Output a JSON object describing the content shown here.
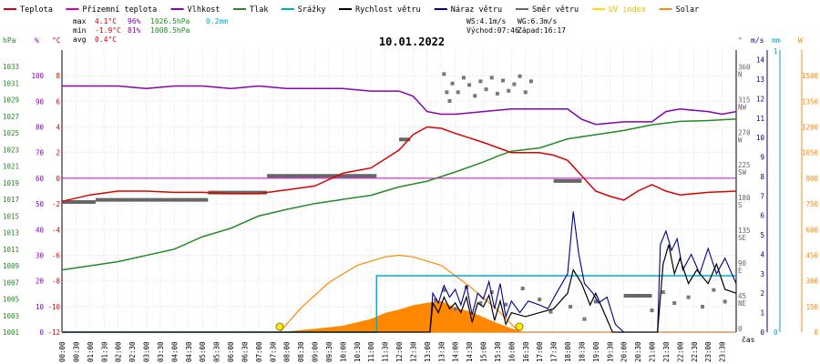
{
  "chart_data": {
    "type": "line",
    "title": "10.01.2022",
    "legend": [
      {
        "key": "teplota",
        "label": "Teplota",
        "color": "#dd0000"
      },
      {
        "key": "prizemni",
        "label": "Přízemní teplota",
        "color": "#cc00cc"
      },
      {
        "key": "vlhkost",
        "label": "Vlhkost",
        "color": "#8a00b4"
      },
      {
        "key": "tlak",
        "label": "Tlak",
        "color": "#228b22"
      },
      {
        "key": "srazky",
        "label": "Srážky",
        "color": "#00aacc"
      },
      {
        "key": "rychlost",
        "label": "Rychlost větru",
        "color": "#000000"
      },
      {
        "key": "naraz",
        "label": "Náraz větru",
        "color": "#000088"
      },
      {
        "key": "smer",
        "label": "Směr větru",
        "color": "#666666"
      },
      {
        "key": "uv",
        "label": "UV index",
        "color": "#ffdd00"
      },
      {
        "key": "solar",
        "label": "Solar",
        "color": "#ff8800"
      }
    ],
    "stats": {
      "max": {
        "label": "max",
        "temp": "4.1°C",
        "hum": "96%",
        "press": "1026.5hPa",
        "rain": "0.2mm"
      },
      "min": {
        "label": "min",
        "temp": "-1.9°C",
        "hum": "81%",
        "press": "1008.5hPa"
      },
      "avg": {
        "label": "avg",
        "temp": "0.4°C"
      }
    },
    "wind_info": {
      "ws": "WS:4.1m/s",
      "wg": "WG:6.3m/s",
      "sunrise": "Východ:07:46",
      "sunset": "Západ:16:17"
    },
    "axis_units": {
      "hpa": "hPa",
      "pct": "%",
      "degc": "°C",
      "deg": "°",
      "ms": "m/s",
      "mm": "mm",
      "w": "W",
      "time": "čas"
    },
    "axes": {
      "hpa_ticks": [
        1033,
        1031,
        1029,
        1027,
        1025,
        1023,
        1021,
        1019,
        1017,
        1015,
        1013,
        1011,
        1009,
        1007,
        1005,
        1003,
        1001
      ],
      "pct_ticks": [
        100,
        90,
        80,
        70,
        60,
        50,
        40,
        30,
        20,
        10,
        0
      ],
      "temp_ticks": [
        8,
        6,
        4,
        2,
        0,
        -2,
        -4,
        -6,
        -8,
        -10,
        -12
      ],
      "dir_ticks": [
        360,
        315,
        270,
        225,
        180,
        135,
        90,
        45,
        0
      ],
      "dir_labels": [
        "N",
        "NW",
        "W",
        "SW",
        "S",
        "SE",
        "E",
        "NE",
        ""
      ],
      "ms_ticks": [
        14,
        13,
        12,
        11,
        10,
        9,
        8,
        7,
        6,
        5,
        4,
        3,
        2,
        1,
        0
      ],
      "mm_ticks": [
        1,
        0
      ],
      "solar_ticks": [
        1500,
        1350,
        1200,
        1050,
        900,
        750,
        600,
        450,
        300,
        150,
        0
      ],
      "time_labels": [
        "00:00",
        "00:30",
        "01:00",
        "01:30",
        "02:00",
        "02:30",
        "03:00",
        "03:30",
        "04:00",
        "04:30",
        "05:00",
        "05:30",
        "06:00",
        "06:30",
        "07:00",
        "07:30",
        "08:00",
        "08:30",
        "09:00",
        "09:30",
        "10:00",
        "10:30",
        "11:00",
        "11:30",
        "12:00",
        "12:30",
        "13:00",
        "13:30",
        "14:00",
        "14:30",
        "15:00",
        "15:30",
        "16:00",
        "16:30",
        "17:00",
        "17:30",
        "18:00",
        "18:30",
        "19:00",
        "19:30",
        "20:00",
        "20:30",
        "21:00",
        "21:30",
        "22:00",
        "22:30",
        "23:00",
        "23:30"
      ],
      "temp_range": [
        -12,
        10
      ],
      "hour_range": [
        0,
        24
      ],
      "grid": true
    },
    "series": {
      "teplota": [
        [
          0,
          -1.8
        ],
        [
          1,
          -1.3
        ],
        [
          2,
          -1.0
        ],
        [
          3,
          -1.0
        ],
        [
          4,
          -1.1
        ],
        [
          5,
          -1.1
        ],
        [
          6,
          -1.2
        ],
        [
          7,
          -1.2
        ],
        [
          8,
          -0.9
        ],
        [
          9,
          -0.6
        ],
        [
          10,
          0.4
        ],
        [
          11,
          0.8
        ],
        [
          12,
          2.2
        ],
        [
          12.5,
          3.4
        ],
        [
          13,
          4.0
        ],
        [
          13.5,
          3.9
        ],
        [
          14,
          3.5
        ],
        [
          15,
          2.8
        ],
        [
          16,
          2.0
        ],
        [
          17,
          2.0
        ],
        [
          17.5,
          1.8
        ],
        [
          18,
          1.4
        ],
        [
          18.5,
          0.2
        ],
        [
          19,
          -1.0
        ],
        [
          19.5,
          -1.4
        ],
        [
          20,
          -1.7
        ],
        [
          20.5,
          -1.0
        ],
        [
          21,
          -0.5
        ],
        [
          21.5,
          -1.0
        ],
        [
          22,
          -1.3
        ],
        [
          23,
          -1.1
        ],
        [
          24,
          -1.0
        ]
      ],
      "vlhkost": [
        [
          0,
          96
        ],
        [
          1,
          96
        ],
        [
          2,
          96
        ],
        [
          3,
          95
        ],
        [
          4,
          96
        ],
        [
          5,
          96
        ],
        [
          6,
          95
        ],
        [
          7,
          96
        ],
        [
          8,
          95
        ],
        [
          9,
          95
        ],
        [
          10,
          95
        ],
        [
          11,
          94
        ],
        [
          12,
          94
        ],
        [
          12.5,
          92
        ],
        [
          13,
          86
        ],
        [
          13.5,
          85
        ],
        [
          14,
          85
        ],
        [
          15,
          86
        ],
        [
          16,
          87
        ],
        [
          17,
          87
        ],
        [
          18,
          87
        ],
        [
          18.5,
          83
        ],
        [
          19,
          81
        ],
        [
          20,
          82
        ],
        [
          21,
          82
        ],
        [
          21.5,
          86
        ],
        [
          22,
          87
        ],
        [
          23,
          86
        ],
        [
          23.5,
          85
        ],
        [
          24,
          86
        ]
      ],
      "tlak": [
        [
          0,
          1008.5
        ],
        [
          2,
          1009.5
        ],
        [
          4,
          1011.0
        ],
        [
          5,
          1012.5
        ],
        [
          6,
          1013.5
        ],
        [
          7,
          1015.0
        ],
        [
          8,
          1015.8
        ],
        [
          9,
          1016.5
        ],
        [
          10,
          1017.0
        ],
        [
          11,
          1017.5
        ],
        [
          12,
          1018.5
        ],
        [
          13,
          1019.2
        ],
        [
          14,
          1020.3
        ],
        [
          15,
          1021.5
        ],
        [
          15.5,
          1022.2
        ],
        [
          16,
          1022.8
        ],
        [
          17,
          1023.2
        ],
        [
          18,
          1024.3
        ],
        [
          19,
          1024.8
        ],
        [
          20,
          1025.3
        ],
        [
          21,
          1026.0
        ],
        [
          22,
          1026.4
        ],
        [
          23,
          1026.5
        ],
        [
          24,
          1026.7
        ]
      ],
      "srazky": [
        [
          0,
          0
        ],
        [
          11.2,
          0
        ],
        [
          11.2,
          0.2
        ],
        [
          24,
          0.2
        ]
      ],
      "smer_segments": [
        [
          0,
          1.2,
          179
        ],
        [
          1.2,
          5.2,
          182
        ],
        [
          5.2,
          7.3,
          192
        ],
        [
          7.3,
          11.2,
          215
        ],
        [
          12,
          12.4,
          265
        ],
        [
          17.5,
          18.5,
          208
        ],
        [
          20,
          21,
          50
        ]
      ],
      "smer_points": [
        [
          13.6,
          355
        ],
        [
          13.7,
          330
        ],
        [
          13.8,
          318
        ],
        [
          13.9,
          342
        ],
        [
          14.1,
          330
        ],
        [
          14.3,
          350
        ],
        [
          14.5,
          340
        ],
        [
          14.7,
          325
        ],
        [
          14.9,
          345
        ],
        [
          15.1,
          334
        ],
        [
          15.3,
          350
        ],
        [
          15.5,
          328
        ],
        [
          15.7,
          346
        ],
        [
          15.9,
          332
        ],
        [
          16.1,
          341
        ],
        [
          16.3,
          352
        ],
        [
          16.5,
          330
        ],
        [
          16.7,
          345
        ],
        [
          13.3,
          44
        ],
        [
          13.6,
          58
        ],
        [
          14.0,
          32
        ],
        [
          14.4,
          62
        ],
        [
          14.9,
          40
        ],
        [
          15.3,
          55
        ],
        [
          15.8,
          38
        ],
        [
          16.4,
          60
        ],
        [
          17.0,
          45
        ],
        [
          17.4,
          28
        ],
        [
          18.1,
          35
        ],
        [
          18.6,
          18
        ],
        [
          19.0,
          42
        ],
        [
          21.0,
          30
        ],
        [
          21.4,
          55
        ],
        [
          21.8,
          40
        ],
        [
          22.3,
          48
        ],
        [
          22.8,
          35
        ],
        [
          23.2,
          58
        ],
        [
          23.6,
          42
        ]
      ],
      "rychlost": [
        [
          0,
          0
        ],
        [
          13.1,
          0
        ],
        [
          13.2,
          1.5
        ],
        [
          13.4,
          1.0
        ],
        [
          13.6,
          1.8
        ],
        [
          13.8,
          1.2
        ],
        [
          14,
          1.5
        ],
        [
          14.2,
          1.0
        ],
        [
          14.4,
          1.8
        ],
        [
          14.6,
          0.5
        ],
        [
          14.8,
          1.5
        ],
        [
          15,
          1.3
        ],
        [
          15.2,
          1.9
        ],
        [
          15.4,
          0.6
        ],
        [
          15.6,
          1.6
        ],
        [
          15.8,
          0.4
        ],
        [
          16,
          1.0
        ],
        [
          16.5,
          0.8
        ],
        [
          17,
          1.0
        ],
        [
          17.5,
          1.2
        ],
        [
          18,
          2.0
        ],
        [
          18.2,
          3.2
        ],
        [
          18.5,
          2.5
        ],
        [
          18.8,
          1.4
        ],
        [
          19,
          2.0
        ],
        [
          19.3,
          1.0
        ],
        [
          19.6,
          0
        ],
        [
          21.2,
          0
        ],
        [
          21.4,
          3.5
        ],
        [
          21.6,
          4.5
        ],
        [
          21.8,
          3.0
        ],
        [
          22,
          3.8
        ],
        [
          22.3,
          2.5
        ],
        [
          22.6,
          3.2
        ],
        [
          23,
          2.5
        ],
        [
          23.3,
          3.5
        ],
        [
          23.6,
          2.2
        ],
        [
          24,
          2.0
        ]
      ],
      "naraz": [
        [
          0,
          0
        ],
        [
          13.1,
          0
        ],
        [
          13.2,
          2.0
        ],
        [
          13.4,
          1.5
        ],
        [
          13.6,
          2.4
        ],
        [
          13.8,
          1.8
        ],
        [
          14,
          2.2
        ],
        [
          14.2,
          1.4
        ],
        [
          14.4,
          2.4
        ],
        [
          14.6,
          0.9
        ],
        [
          14.8,
          2.0
        ],
        [
          15,
          1.7
        ],
        [
          15.2,
          2.6
        ],
        [
          15.4,
          1.2
        ],
        [
          15.6,
          2.5
        ],
        [
          15.8,
          0.8
        ],
        [
          16,
          1.6
        ],
        [
          16.3,
          1.0
        ],
        [
          16.6,
          1.6
        ],
        [
          17,
          1.4
        ],
        [
          17.3,
          1.2
        ],
        [
          17.6,
          2.0
        ],
        [
          18,
          3.0
        ],
        [
          18.2,
          6.2
        ],
        [
          18.4,
          4.0
        ],
        [
          18.6,
          2.5
        ],
        [
          18.9,
          2.0
        ],
        [
          19.1,
          1.5
        ],
        [
          19.4,
          1.8
        ],
        [
          19.7,
          0.4
        ],
        [
          20,
          0
        ],
        [
          21.2,
          0
        ],
        [
          21.3,
          4.5
        ],
        [
          21.5,
          5.2
        ],
        [
          21.7,
          4.2
        ],
        [
          21.9,
          4.8
        ],
        [
          22.1,
          3.2
        ],
        [
          22.4,
          4.0
        ],
        [
          22.7,
          3.0
        ],
        [
          23,
          4.3
        ],
        [
          23.3,
          3.0
        ],
        [
          23.6,
          3.8
        ],
        [
          24,
          2.5
        ]
      ],
      "solar": [
        [
          0,
          0
        ],
        [
          7.8,
          0
        ],
        [
          8,
          2
        ],
        [
          9,
          18
        ],
        [
          10,
          35
        ],
        [
          11,
          75
        ],
        [
          11.5,
          110
        ],
        [
          12,
          130
        ],
        [
          12.5,
          155
        ],
        [
          13,
          170
        ],
        [
          13.5,
          180
        ],
        [
          14,
          140
        ],
        [
          14.5,
          120
        ],
        [
          15,
          85
        ],
        [
          15.5,
          50
        ],
        [
          16,
          20
        ],
        [
          16.3,
          5
        ],
        [
          16.5,
          0
        ],
        [
          24,
          0
        ]
      ],
      "solar_clear": [
        [
          7.75,
          0
        ],
        [
          8.5,
          140
        ],
        [
          9.5,
          290
        ],
        [
          10.5,
          390
        ],
        [
          11.5,
          440
        ],
        [
          12.0,
          450
        ],
        [
          12.5,
          440
        ],
        [
          13.5,
          390
        ],
        [
          14.5,
          270
        ],
        [
          15.5,
          130
        ],
        [
          16.28,
          0
        ]
      ],
      "uv_markers": [
        [
          7.75,
          0
        ],
        [
          16.28,
          0
        ]
      ],
      "prizemni_level": 0
    }
  }
}
